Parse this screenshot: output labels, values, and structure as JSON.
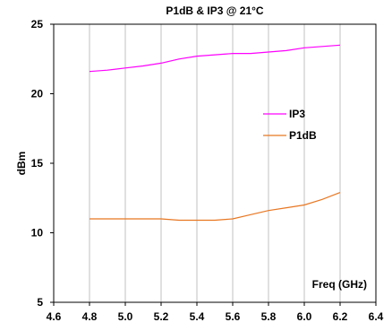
{
  "chart_data": {
    "type": "line",
    "title": "P1dB & IP3 @ 21°C",
    "xlabel": "Freq (GHz)",
    "ylabel": "dBm",
    "xlim": [
      4.6,
      6.4
    ],
    "ylim": [
      5,
      25
    ],
    "xticks": [
      "4.6",
      "4.8",
      "5.0",
      "5.2",
      "5.4",
      "5.6",
      "5.8",
      "6.0",
      "6.2",
      "6.4"
    ],
    "yticks": [
      "5",
      "10",
      "15",
      "20",
      "25"
    ],
    "grid": "vertical",
    "legend_position": "right",
    "series": [
      {
        "name": "IP3",
        "color": "#ff00ff",
        "x": [
          4.8,
          4.9,
          5.0,
          5.1,
          5.2,
          5.3,
          5.4,
          5.5,
          5.6,
          5.7,
          5.8,
          5.9,
          6.0,
          6.1,
          6.2
        ],
        "y": [
          21.6,
          21.7,
          21.85,
          22.0,
          22.2,
          22.5,
          22.7,
          22.8,
          22.9,
          22.9,
          23.0,
          23.1,
          23.3,
          23.4,
          23.5
        ]
      },
      {
        "name": "P1dB",
        "color": "#e87722",
        "x": [
          4.8,
          4.9,
          5.0,
          5.1,
          5.2,
          5.3,
          5.4,
          5.5,
          5.6,
          5.7,
          5.8,
          5.9,
          6.0,
          6.1,
          6.2
        ],
        "y": [
          11.0,
          11.0,
          11.0,
          11.0,
          11.0,
          10.9,
          10.9,
          10.9,
          11.0,
          11.3,
          11.6,
          11.8,
          12.0,
          12.4,
          12.9
        ]
      }
    ]
  }
}
